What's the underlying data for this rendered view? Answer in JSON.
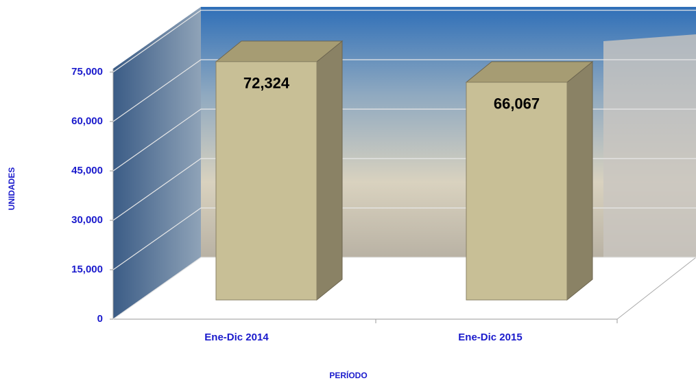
{
  "chart_data": {
    "type": "bar3d",
    "x_label": "PERÍODO",
    "y_label": "UNIDADES",
    "categories": [
      "Ene-Dic 2014",
      "Ene-Dic 2015"
    ],
    "values": [
      72324,
      66067
    ],
    "value_labels": [
      "72,324",
      "66,067"
    ],
    "color": "#c8bf96",
    "ylim": [
      0,
      75000
    ],
    "yticks": [
      0,
      {
        "value": 15000,
        "label": "15,000"
      },
      {
        "value": 30000,
        "label": "30,000"
      },
      {
        "value": 45000,
        "label": "45,000"
      },
      {
        "value": 60000,
        "label": "60,000"
      },
      {
        "value": 75000,
        "label": "75,000"
      }
    ],
    "grid": true
  }
}
